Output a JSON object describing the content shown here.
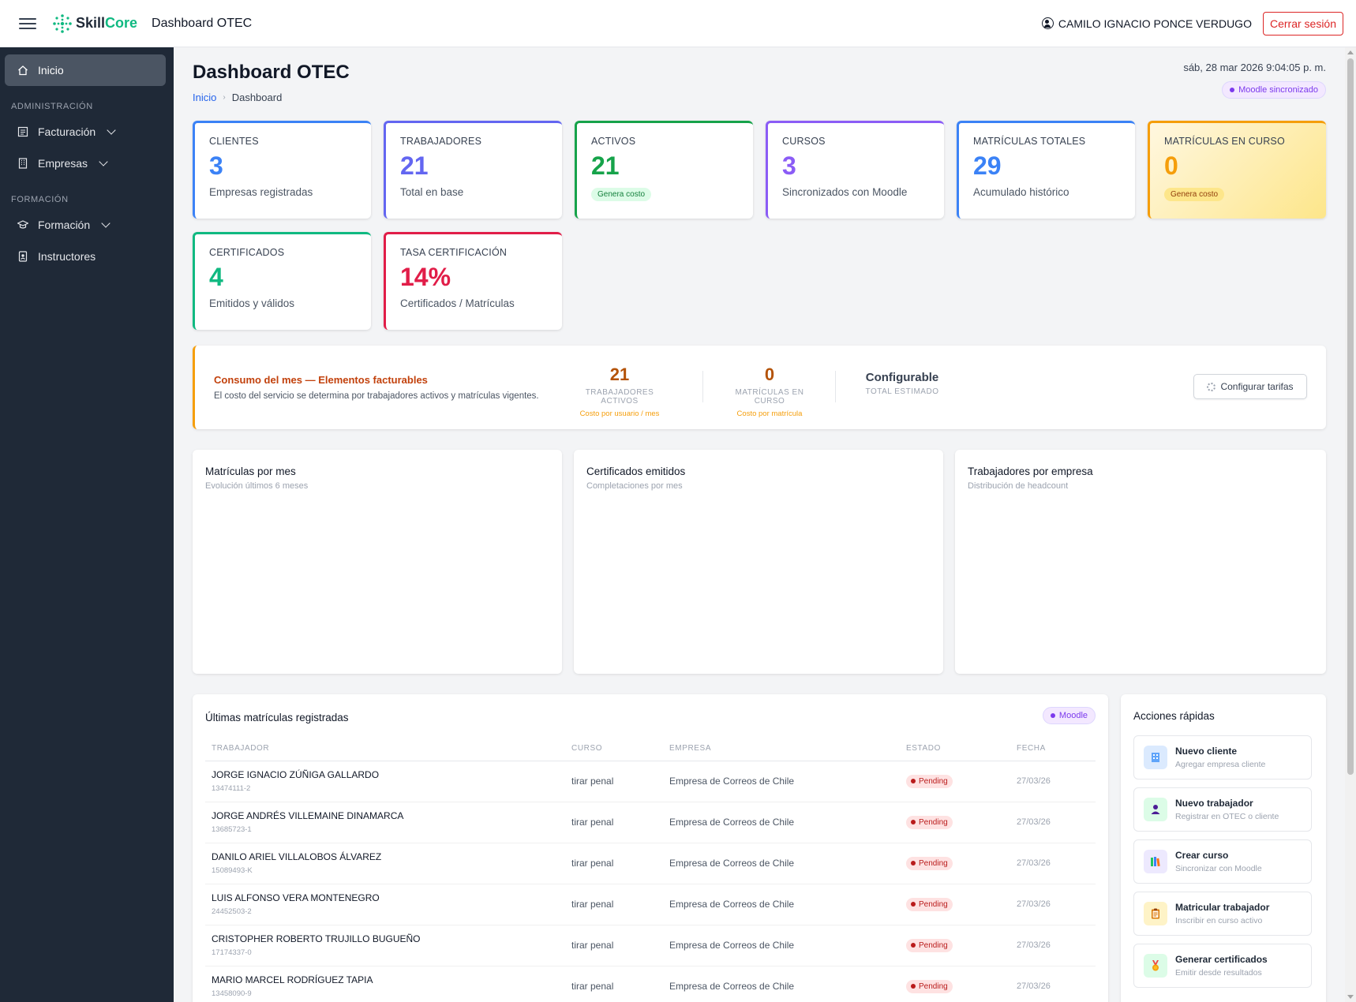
{
  "app": {
    "brand_prefix": "Skill",
    "brand_suffix": "Core",
    "title": "Dashboard OTEC",
    "user_name": "CAMILO IGNACIO PONCE VERDUGO",
    "logout_label": "Cerrar sesión"
  },
  "sidebar": {
    "home": "Inicio",
    "section_admin": "ADMINISTRACIÓN",
    "billing": "Facturación",
    "companies": "Empresas",
    "section_training": "FORMACIÓN",
    "training": "Formación",
    "instructors": "Instructores"
  },
  "header": {
    "title": "Dashboard OTEC",
    "breadcrumb_home": "Inicio",
    "breadcrumb_current": "Dashboard",
    "datetime": "sáb, 28 mar 2026 9:04:05 p. m.",
    "sync_status": "Moodle sincronizado"
  },
  "kpis": [
    {
      "label": "CLIENTES",
      "value": "3",
      "sub": "Empresas registradas",
      "color": "#3b82f6"
    },
    {
      "label": "TRABAJADORES",
      "value": "21",
      "sub": "Total en base",
      "color": "#6366f1"
    },
    {
      "label": "ACTIVOS",
      "value": "21",
      "badge": "Genera costo",
      "color": "#16a34a"
    },
    {
      "label": "CURSOS",
      "value": "3",
      "sub": "Sincronizados con Moodle",
      "color": "#8b5cf6"
    },
    {
      "label": "MATRÍCULAS TOTALES",
      "value": "29",
      "sub": "Acumulado histórico",
      "color": "#3b82f6"
    },
    {
      "label": "MATRÍCULAS EN CURSO",
      "value": "0",
      "badge": "Genera costo",
      "color": "#f59e0b"
    },
    {
      "label": "CERTIFICADOS",
      "value": "4",
      "sub": "Emitidos y válidos",
      "color": "#10b981"
    },
    {
      "label": "TASA CERTIFICACIÓN",
      "value": "14%",
      "sub": "Certificados / Matrículas",
      "color": "#e11d48"
    }
  ],
  "consumo": {
    "title": "Consumo del mes — Elementos facturables",
    "description": "El costo del servicio se determina por trabajadores activos y matrículas vigentes.",
    "active_workers_value": "21",
    "active_workers_label": "TRABAJADORES ACTIVOS",
    "active_workers_note": "Costo por usuario / mes",
    "enrollments_value": "0",
    "enrollments_label": "MATRÍCULAS EN CURSO",
    "enrollments_note": "Costo por matrícula",
    "total_value": "Configurable",
    "total_label": "TOTAL ESTIMADO",
    "config_button": "Configurar tarifas"
  },
  "charts": [
    {
      "title": "Matrículas por mes",
      "subtitle": "Evolución últimos 6 meses"
    },
    {
      "title": "Certificados emitidos",
      "subtitle": "Completaciones por mes"
    },
    {
      "title": "Trabajadores por empresa",
      "subtitle": "Distribución de headcount"
    }
  ],
  "enrollments": {
    "title": "Últimas matrículas registradas",
    "badge": "Moodle",
    "columns": [
      "TRABAJADOR",
      "CURSO",
      "EMPRESA",
      "ESTADO",
      "FECHA"
    ],
    "rows": [
      {
        "name": "JORGE IGNACIO ZÚÑIGA GALLARDO",
        "rut": "13474111-2",
        "course": "tirar penal",
        "company": "Empresa de Correos de Chile",
        "status": "Pending",
        "date": "27/03/26"
      },
      {
        "name": "JORGE ANDRÉS VILLEMAINE DINAMARCA",
        "rut": "13685723-1",
        "course": "tirar penal",
        "company": "Empresa de Correos de Chile",
        "status": "Pending",
        "date": "27/03/26"
      },
      {
        "name": "DANILO ARIEL VILLALOBOS ÁLVAREZ",
        "rut": "15089493-K",
        "course": "tirar penal",
        "company": "Empresa de Correos de Chile",
        "status": "Pending",
        "date": "27/03/26"
      },
      {
        "name": "LUIS ALFONSO VERA MONTENEGRO",
        "rut": "24452503-2",
        "course": "tirar penal",
        "company": "Empresa de Correos de Chile",
        "status": "Pending",
        "date": "27/03/26"
      },
      {
        "name": "CRISTOPHER ROBERTO TRUJILLO BUGUEÑO",
        "rut": "17174337-0",
        "course": "tirar penal",
        "company": "Empresa de Correos de Chile",
        "status": "Pending",
        "date": "27/03/26"
      },
      {
        "name": "MARIO MARCEL RODRÍGUEZ TAPIA",
        "rut": "13458090-9",
        "course": "tirar penal",
        "company": "Empresa de Correos de Chile",
        "status": "Pending",
        "date": "27/03/26"
      }
    ]
  },
  "quick_actions": {
    "title": "Acciones rápidas",
    "items": [
      {
        "title": "Nuevo cliente",
        "subtitle": "Agregar empresa cliente",
        "icon": "building-icon",
        "bg": "#dbeafe"
      },
      {
        "title": "Nuevo trabajador",
        "subtitle": "Registrar en OTEC o cliente",
        "icon": "person-icon",
        "bg": "#dcfce7"
      },
      {
        "title": "Crear curso",
        "subtitle": "Sincronizar con Moodle",
        "icon": "books-icon",
        "bg": "#ede9fe"
      },
      {
        "title": "Matricular trabajador",
        "subtitle": "Inscribir en curso activo",
        "icon": "clipboard-icon",
        "bg": "#fef3c7"
      },
      {
        "title": "Generar certificados",
        "subtitle": "Emitir desde resultados",
        "icon": "medal-icon",
        "bg": "#dcfce7"
      }
    ]
  }
}
